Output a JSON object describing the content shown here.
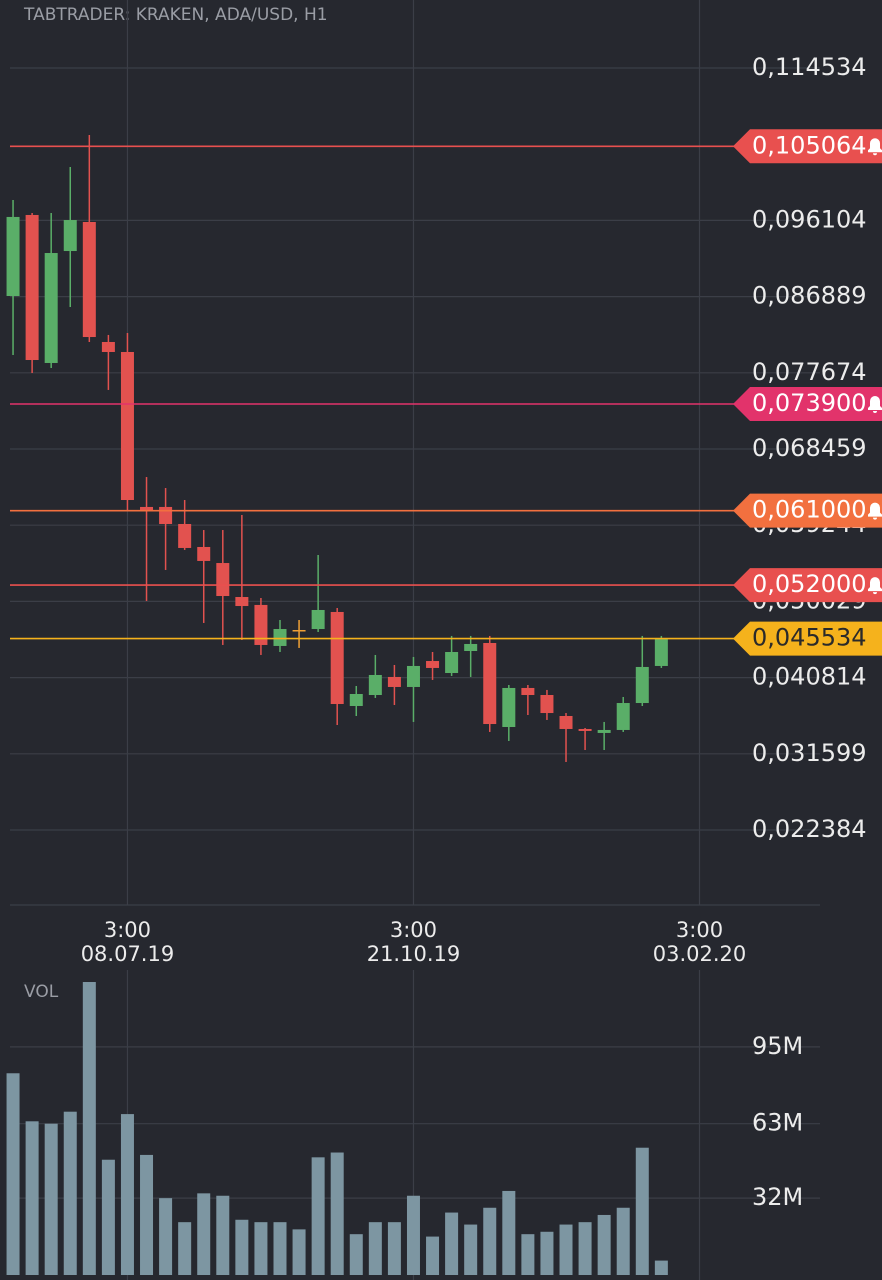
{
  "chart_data": {
    "type": "candlestick",
    "title": "TABTRADER: KRAKEN, ADA/USD, H1",
    "xlim": [
      -0.16,
      42.32
    ],
    "xticks": [
      {
        "value": 6,
        "time": "3:00",
        "label": "08.07.19"
      },
      {
        "value": 21,
        "time": "3:00",
        "label": "21.10.19"
      },
      {
        "value": 36,
        "time": "3:00",
        "label": "03.02.20"
      }
    ],
    "ylim": [
      0.013314,
      0.122757
    ],
    "yticks": [
      {
        "value": 0.114534,
        "label": "0,114534"
      },
      {
        "value": 0.096104,
        "label": "0,096104"
      },
      {
        "value": 0.086889,
        "label": "0,086889"
      },
      {
        "value": 0.077674,
        "label": "0,077674"
      },
      {
        "value": 0.068459,
        "label": "0,068459"
      },
      {
        "value": 0.059244,
        "label": "0,059244"
      },
      {
        "value": 0.050029,
        "label": "0,050029"
      },
      {
        "value": 0.040814,
        "label": "0,040814"
      },
      {
        "value": 0.031599,
        "label": "0,031599"
      },
      {
        "value": 0.022384,
        "label": "0,022384"
      }
    ],
    "grid": true,
    "up_color": "#5aae68",
    "down_color": "#e2524f",
    "doji_color": "#f0a035",
    "open": [
      0.08696,
      0.09676,
      0.07886,
      0.0924,
      0.09591,
      0.0814,
      0.08019,
      0.06145,
      0.06145,
      0.05939,
      0.05661,
      0.05467,
      0.05056,
      0.0496,
      0.04464,
      0.04657,
      0.04669,
      0.04875,
      0.03738,
      0.03871,
      0.04089,
      0.03968,
      0.04282,
      0.04137,
      0.04403,
      0.045,
      0.03484,
      0.03956,
      0.03871,
      0.03617,
      0.0346,
      0.03412,
      0.03448,
      0.03774,
      0.04222
    ],
    "high": [
      0.09857,
      0.097,
      0.097,
      0.10256,
      0.10643,
      0.08225,
      0.08249,
      0.06507,
      0.06374,
      0.06229,
      0.05866,
      0.05866,
      0.06048,
      0.05044,
      0.04778,
      0.04778,
      0.05564,
      0.04923,
      0.0398,
      0.04355,
      0.04234,
      0.04331,
      0.04391,
      0.04585,
      0.04585,
      0.04585,
      0.03992,
      0.03992,
      0.03932,
      0.03653,
      0.03472,
      0.03545,
      0.03847,
      0.04585,
      0.04585
    ],
    "low": [
      0.07983,
      0.07765,
      0.07826,
      0.08563,
      0.0814,
      0.0756,
      0.06108,
      0.05008,
      0.05383,
      0.05625,
      0.04742,
      0.04476,
      0.04536,
      0.04355,
      0.04391,
      0.0444,
      0.04633,
      0.03508,
      0.03617,
      0.03835,
      0.0375,
      0.03545,
      0.04053,
      0.04101,
      0.04089,
      0.03424,
      0.03315,
      0.03629,
      0.03569,
      0.03061,
      0.03206,
      0.03206,
      0.03424,
      0.03738,
      0.04198
    ],
    "close": [
      0.09652,
      0.07922,
      0.09216,
      0.09615,
      0.082,
      0.08019,
      0.06229,
      0.06108,
      0.05939,
      0.05649,
      0.05492,
      0.05068,
      0.04947,
      0.04476,
      0.04669,
      0.04657,
      0.04899,
      0.03762,
      0.03883,
      0.04113,
      0.03968,
      0.04222,
      0.04198,
      0.04391,
      0.04488,
      0.0352,
      0.03956,
      0.03871,
      0.03653,
      0.0346,
      0.03436,
      0.03448,
      0.03774,
      0.0421,
      0.04553
    ],
    "alerts": [
      {
        "value": 0.105064,
        "label": "0,105064",
        "color": "#e8504f"
      },
      {
        "value": 0.0739,
        "label": "0,073900",
        "color": "#e2336b"
      },
      {
        "value": 0.061,
        "label": "0,061000",
        "color": "#f2703f"
      },
      {
        "value": 0.052,
        "label": "0,052000",
        "color": "#e8504f"
      }
    ],
    "last_price": {
      "value": 0.045534,
      "label": "0,045534",
      "color": "#f5b21c"
    },
    "volume": {
      "title": "VOL",
      "color": "#7d96a2",
      "ylim": [
        0,
        127
      ],
      "yticks": [
        {
          "value": 95,
          "label": "95M"
        },
        {
          "value": 63,
          "label": "63M"
        },
        {
          "value": 32,
          "label": "32M"
        }
      ],
      "values": [
        84,
        64,
        63,
        68,
        122,
        48,
        67,
        50,
        32,
        22,
        34,
        33,
        23,
        22,
        22,
        19,
        49,
        51,
        17,
        22,
        22,
        33,
        16,
        26,
        21,
        28,
        35,
        17,
        18,
        21,
        22,
        25,
        28,
        53,
        6
      ]
    }
  }
}
